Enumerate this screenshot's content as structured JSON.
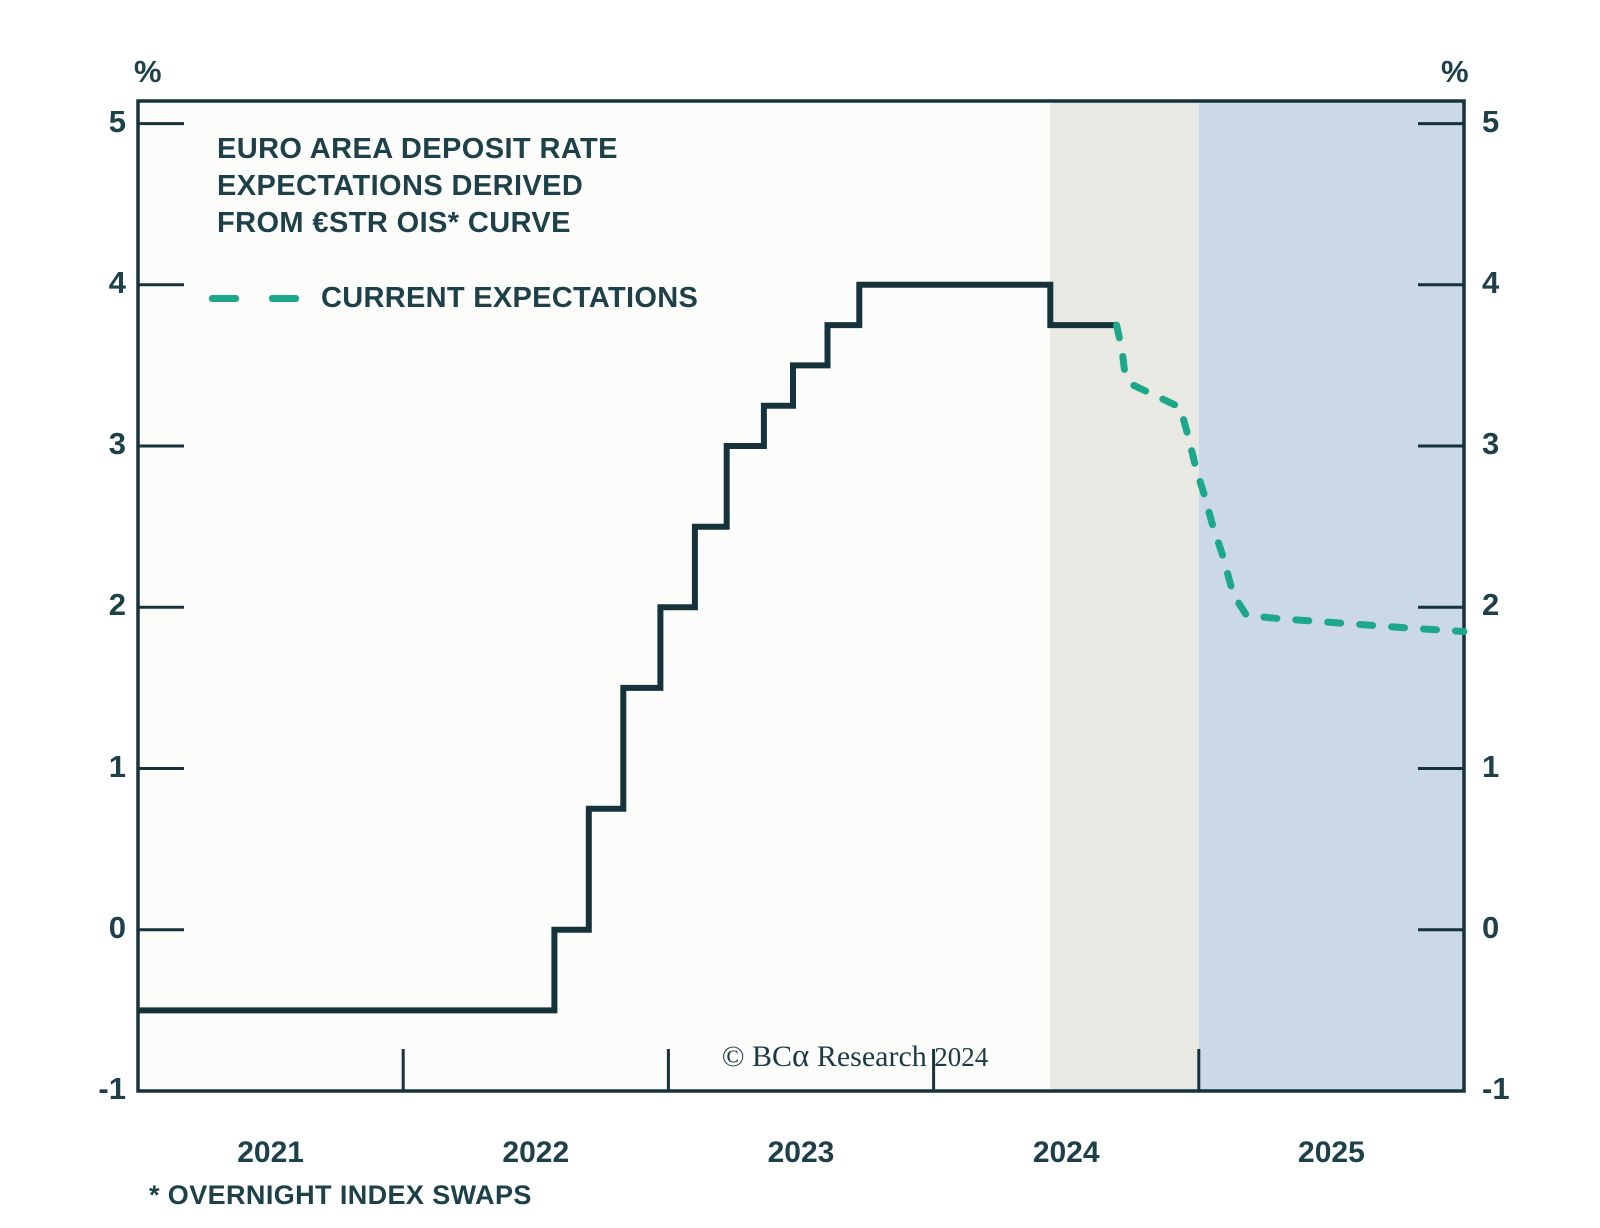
{
  "chart_data": {
    "type": "line",
    "title_lines": [
      "EURO AREA DEPOSIT RATE",
      "EXPECTATIONS DERIVED",
      "FROM €STR OIS* CURVE"
    ],
    "legend": {
      "label": "CURRENT EXPECTATIONS",
      "position": "top-left",
      "swatch_color": "#1ea88b"
    },
    "axes": {
      "unit": "%",
      "x_min": 2021.0,
      "x_max": 2026.0,
      "y_min": -1,
      "y_max": 5.14,
      "y_ticks": [
        5,
        4,
        3,
        2,
        1,
        0,
        -1
      ],
      "x_ticks": [
        2022,
        2023,
        2024,
        2025
      ],
      "x_labels": [
        {
          "text": "2021",
          "pos": 2021.5
        },
        {
          "text": "2022",
          "pos": 2022.5
        },
        {
          "text": "2023",
          "pos": 2023.5
        },
        {
          "text": "2024",
          "pos": 2024.5
        },
        {
          "text": "2025",
          "pos": 2025.5
        }
      ],
      "grid": false
    },
    "colors": {
      "line_dark": "#16333c",
      "line_green": "#1ea88b",
      "band_gray": "#e8e9e3",
      "band_blue": "#cbd8e7",
      "plot_bg": "#fcfdfa",
      "frame": "#16333c",
      "text": "#1d4049"
    },
    "bands": [
      {
        "name": "mid-2024-shading",
        "from": 2024.44,
        "to": 2025.0,
        "color": "#e8e9e3"
      },
      {
        "name": "2025-shading",
        "from": 2025.0,
        "to": 2026.0,
        "color": "#cbd8e7"
      }
    ],
    "series": [
      {
        "name": "deposit-rate-history",
        "line_style": "solid",
        "color": "#16333c",
        "points": [
          [
            2021.0,
            -0.5
          ],
          [
            2022.57,
            -0.5
          ],
          [
            2022.57,
            0.0
          ],
          [
            2022.7,
            0.0
          ],
          [
            2022.7,
            0.75
          ],
          [
            2022.83,
            0.75
          ],
          [
            2022.83,
            1.5
          ],
          [
            2022.97,
            1.5
          ],
          [
            2022.97,
            2.0
          ],
          [
            2023.1,
            2.0
          ],
          [
            2023.1,
            2.5
          ],
          [
            2023.22,
            2.5
          ],
          [
            2023.22,
            3.0
          ],
          [
            2023.36,
            3.0
          ],
          [
            2023.36,
            3.25
          ],
          [
            2023.47,
            3.25
          ],
          [
            2023.47,
            3.5
          ],
          [
            2023.6,
            3.5
          ],
          [
            2023.6,
            3.75
          ],
          [
            2023.72,
            3.75
          ],
          [
            2023.72,
            4.0
          ],
          [
            2024.44,
            4.0
          ],
          [
            2024.44,
            3.75
          ],
          [
            2024.69,
            3.75
          ]
        ]
      },
      {
        "name": "current-expectations",
        "line_style": "dashed",
        "color": "#1ea88b",
        "points": [
          [
            2024.69,
            3.75
          ],
          [
            2024.71,
            3.6
          ],
          [
            2024.72,
            3.47
          ],
          [
            2024.75,
            3.38
          ],
          [
            2024.84,
            3.31
          ],
          [
            2024.93,
            3.24
          ],
          [
            2024.96,
            3.06
          ],
          [
            2024.99,
            2.86
          ],
          [
            2025.02,
            2.7
          ],
          [
            2025.05,
            2.52
          ],
          [
            2025.09,
            2.32
          ],
          [
            2025.13,
            2.08
          ],
          [
            2025.18,
            1.95
          ],
          [
            2025.3,
            1.93
          ],
          [
            2025.55,
            1.9
          ],
          [
            2025.8,
            1.87
          ],
          [
            2026.0,
            1.85
          ]
        ]
      }
    ],
    "footnote": "* OVERNIGHT INDEX SWAPS",
    "copyright": {
      "prefix": "© BC",
      "alpha": "α",
      "middle": " Research ",
      "year": "2024"
    }
  }
}
